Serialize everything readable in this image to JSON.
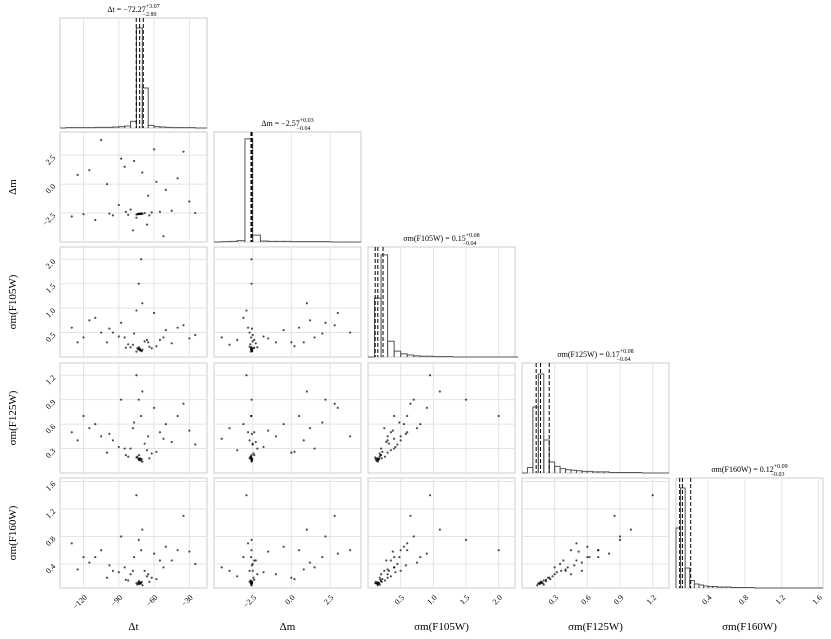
{
  "chart_data": {
    "type": "corner",
    "grid": true,
    "color": "#000000",
    "hist_color": "#555555",
    "params": [
      {
        "label": "Δt",
        "title": {
          "text": "Δt = −72.27",
          "plus": "+3.07",
          "minus": "−2.89"
        },
        "lim": [
          -140,
          -15
        ],
        "ticks": [
          {
            "value": -120,
            "label": "−120"
          },
          {
            "value": -90,
            "label": "−90"
          },
          {
            "value": -60,
            "label": "−60"
          },
          {
            "value": -30,
            "label": "−30"
          }
        ],
        "quantiles": [
          -75.16,
          -72.27,
          -69.2
        ],
        "bins": [
          -140,
          -135,
          -130,
          -125,
          -120,
          -115,
          -110,
          -105,
          -100,
          -95,
          -90,
          -85,
          -80,
          -75,
          -70,
          -65,
          -60,
          -55,
          -50,
          -45,
          -40,
          -35,
          -30,
          -25,
          -20,
          -15
        ],
        "counts": [
          0,
          1,
          1,
          1,
          1,
          1,
          2,
          2,
          2,
          3,
          4,
          6,
          20,
          300,
          120,
          8,
          4,
          3,
          2,
          1,
          1,
          1,
          1,
          0,
          0
        ],
        "hist_ylim": [
          0,
          330
        ]
      },
      {
        "label": "Δm",
        "title": {
          "text": "Δm = −2.57",
          "plus": "+0.03",
          "minus": "−0.04"
        },
        "lim": [
          -5,
          4.5
        ],
        "ticks": [
          {
            "value": -2.5,
            "label": "−2.5"
          },
          {
            "value": 0,
            "label": "0.0"
          },
          2.5
        ],
        "quantiles": [
          -2.61,
          -2.57,
          -2.54
        ],
        "bins": [
          -5,
          -4.5,
          -4,
          -3.5,
          -3,
          -2.5,
          -2,
          -1.5,
          -1,
          -0.5,
          0,
          0.5,
          1,
          1.5,
          2,
          2.5,
          3,
          3.5,
          4,
          4.5
        ],
        "counts": [
          0,
          1,
          2,
          4,
          300,
          20,
          3,
          2,
          2,
          2,
          1,
          1,
          1,
          1,
          1,
          0,
          0,
          0,
          0
        ],
        "hist_ylim": [
          0,
          320
        ]
      },
      {
        "label": "σm(F105W)",
        "title": {
          "text": "σm(F105W) = 0.15",
          "plus": "+0.08",
          "minus": "−0.04"
        },
        "lim": [
          0,
          2.25
        ],
        "ticks": [
          0.5,
          {
            "value": 1,
            "label": "1.0"
          },
          1.5,
          {
            "value": 2,
            "label": "2.0"
          }
        ],
        "quantiles": [
          0.11,
          0.15,
          0.23
        ],
        "bins": [
          0,
          0.1,
          0.2,
          0.3,
          0.4,
          0.5,
          0.6,
          0.7,
          0.8,
          0.9,
          1,
          1.1,
          1.2,
          1.3,
          1.4,
          1.5,
          1.6,
          1.7,
          1.8,
          1.9,
          2,
          2.1,
          2.2,
          2.3
        ],
        "counts": [
          0,
          150,
          260,
          40,
          15,
          8,
          5,
          3,
          2,
          2,
          1,
          1,
          1,
          0,
          0,
          0,
          0,
          0,
          0,
          0,
          0,
          0,
          0
        ],
        "hist_ylim": [
          0,
          280
        ]
      },
      {
        "label": "σm(F125W)",
        "title": {
          "text": "σm(F125W) = 0.17",
          "plus": "+0.08",
          "minus": "−0.04"
        },
        "lim": [
          0,
          1.35
        ],
        "ticks": [
          0.3,
          0.6,
          0.9,
          1.2
        ],
        "quantiles": [
          0.13,
          0.17,
          0.25
        ],
        "bins": [
          0,
          0.05,
          0.1,
          0.15,
          0.2,
          0.25,
          0.3,
          0.35,
          0.4,
          0.45,
          0.5,
          0.55,
          0.6,
          0.65,
          0.7,
          0.75,
          0.8,
          0.85,
          0.9,
          0.95,
          1,
          1.05,
          1.1,
          1.15,
          1.2,
          1.25,
          1.3,
          1.35
        ],
        "counts": [
          0,
          10,
          120,
          180,
          60,
          20,
          12,
          8,
          6,
          5,
          4,
          3,
          3,
          2,
          2,
          2,
          1,
          1,
          1,
          1,
          1,
          1,
          0,
          0,
          0,
          0,
          0
        ],
        "hist_ylim": [
          0,
          200
        ]
      },
      {
        "label": "σm(F160W)",
        "title": {
          "text": "σm(F160W) = 0.12",
          "plus": "+0.09",
          "minus": "−0.03"
        },
        "lim": [
          0.05,
          1.65
        ],
        "ticks": [
          0.4,
          0.8,
          1.2,
          1.6
        ],
        "quantiles": [
          0.09,
          0.12,
          0.21
        ],
        "bins": [
          0.05,
          0.1,
          0.15,
          0.2,
          0.25,
          0.3,
          0.35,
          0.4,
          0.45,
          0.5,
          0.55,
          0.6,
          0.65,
          0.7,
          0.75,
          0.8,
          0.85,
          0.9,
          0.95,
          1,
          1.05,
          1.1,
          1.15,
          1.2,
          1.25,
          1.3,
          1.35,
          1.4,
          1.45,
          1.5,
          1.55,
          1.6,
          1.65
        ],
        "counts": [
          120,
          200,
          40,
          15,
          8,
          6,
          4,
          3,
          3,
          2,
          2,
          2,
          1,
          1,
          1,
          1,
          1,
          0,
          0,
          0,
          0,
          0,
          0,
          0,
          0,
          0,
          0,
          0,
          0,
          0,
          0,
          0
        ],
        "hist_ylim": [
          0,
          220
        ]
      }
    ],
    "samples": [
      [
        -72.1,
        -2.56,
        0.14,
        0.16,
        0.11
      ],
      [
        -73.5,
        -2.59,
        0.16,
        0.18,
        0.13
      ],
      [
        -71.0,
        -2.55,
        0.13,
        0.15,
        0.12
      ],
      [
        -74.2,
        -2.6,
        0.18,
        0.2,
        0.1
      ],
      [
        -70.5,
        -2.53,
        0.12,
        0.17,
        0.14
      ],
      [
        -72.8,
        -2.58,
        0.2,
        0.22,
        0.15
      ],
      [
        -69.9,
        -2.57,
        0.15,
        0.14,
        0.09
      ],
      [
        -75.0,
        -2.62,
        0.11,
        0.19,
        0.12
      ],
      [
        -72.5,
        -2.57,
        0.15,
        0.17,
        0.12
      ],
      [
        -71.8,
        -2.56,
        0.14,
        0.18,
        0.13
      ],
      [
        -73.0,
        -2.58,
        0.16,
        0.16,
        0.11
      ],
      [
        -72.0,
        -2.57,
        0.17,
        0.17,
        0.12
      ],
      [
        -95,
        -2.7,
        0.5,
        0.4,
        0.3
      ],
      [
        -55,
        -2.4,
        0.35,
        0.5,
        0.45
      ],
      [
        -110,
        -3.1,
        0.8,
        0.6,
        0.5
      ],
      [
        -40,
        0.5,
        0.6,
        0.7,
        0.6
      ],
      [
        -85,
        1.5,
        0.4,
        0.3,
        0.35
      ],
      [
        -65,
        -1.0,
        0.3,
        0.45,
        0.25
      ],
      [
        -130,
        -2.8,
        0.6,
        0.5,
        0.7
      ],
      [
        -25,
        -2.5,
        0.45,
        0.35,
        0.4
      ],
      [
        -60,
        3.0,
        0.9,
        0.8,
        0.55
      ],
      [
        -78,
        -4.0,
        0.25,
        0.55,
        0.3
      ],
      [
        -88,
        2.2,
        0.7,
        0.9,
        0.8
      ],
      [
        -50,
        -0.5,
        0.55,
        0.6,
        0.65
      ],
      [
        -100,
        0.0,
        0.3,
        0.25,
        0.2
      ],
      [
        -120,
        -2.6,
        0.4,
        0.7,
        0.5
      ],
      [
        -70,
        1.0,
        1.1,
        1.0,
        0.9
      ],
      [
        -80,
        -2.2,
        0.2,
        0.3,
        0.25
      ],
      [
        -66,
        -3.5,
        0.35,
        0.28,
        0.22
      ],
      [
        -45,
        -2.3,
        0.28,
        0.38,
        0.45
      ],
      [
        -105,
        3.8,
        0.5,
        0.45,
        0.6
      ],
      [
        -35,
        2.8,
        0.65,
        0.85,
        1.1
      ],
      [
        -90,
        -1.8,
        0.42,
        0.32,
        0.28
      ],
      [
        -58,
        0.2,
        0.22,
        0.26,
        0.18
      ],
      [
        -115,
        1.2,
        0.75,
        0.55,
        0.42
      ],
      [
        -75,
        -2.9,
        0.95,
        1.2,
        1.4
      ],
      [
        -62,
        -2.45,
        0.18,
        0.24,
        0.2
      ],
      [
        -82,
        -2.65,
        0.26,
        0.2,
        0.16
      ],
      [
        -68,
        -2.5,
        0.32,
        0.36,
        0.3
      ],
      [
        -77,
        2.0,
        0.48,
        0.62,
        0.5
      ],
      [
        -52,
        -4.5,
        0.4,
        0.42,
        0.35
      ],
      [
        -98,
        -2.55,
        0.58,
        0.48,
        0.38
      ],
      [
        -73,
        -2.57,
        1.5,
        0.9,
        0.75
      ],
      [
        -71,
        -2.58,
        2.0,
        0.7,
        0.6
      ],
      [
        -30,
        -1.5,
        0.38,
        0.52,
        0.58
      ],
      [
        -125,
        0.8,
        0.3,
        0.4,
        0.32
      ],
      [
        -84,
        -2.4,
        0.19,
        0.22,
        0.17
      ],
      [
        -64,
        -2.7,
        0.21,
        0.18,
        0.14
      ]
    ]
  }
}
